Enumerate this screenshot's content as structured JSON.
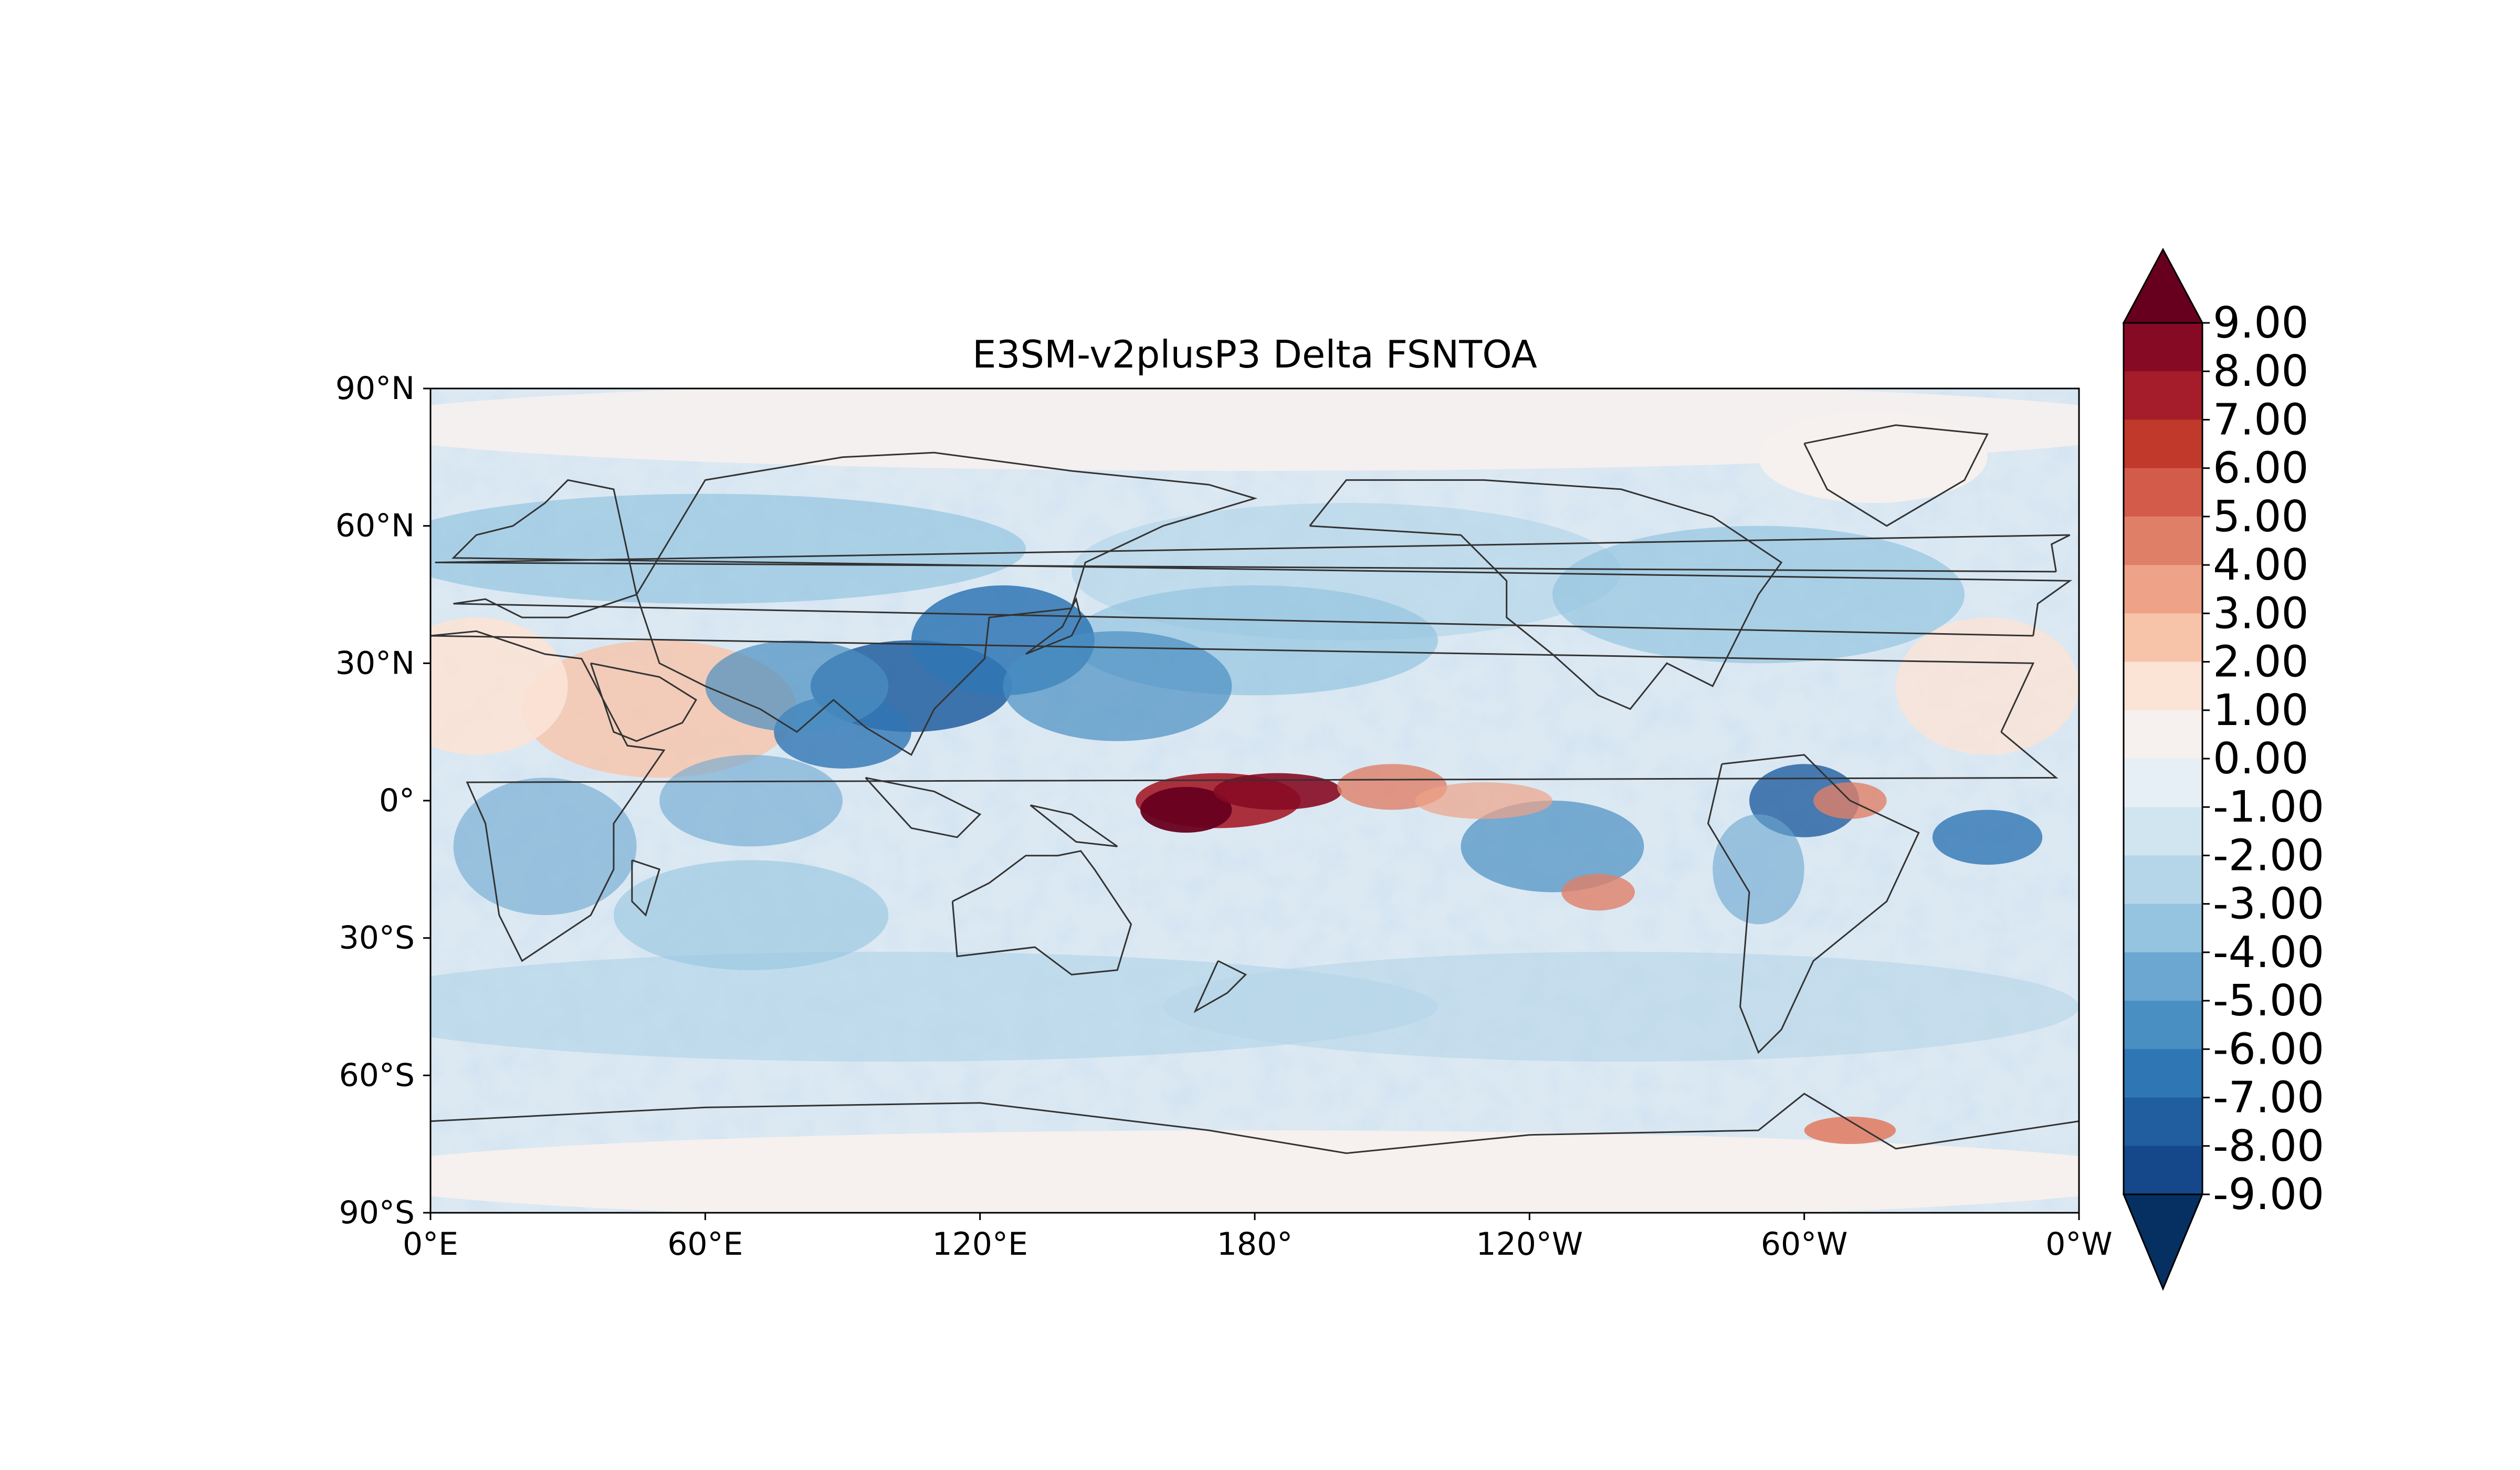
{
  "title": "E3SM-v2plusP3 Delta FSNTOA",
  "map": {
    "x_ticks": [
      "0°E",
      "60°E",
      "120°E",
      "180°",
      "120°W",
      "60°W",
      "0°W"
    ],
    "y_ticks": [
      "90°N",
      "60°N",
      "30°N",
      "0°",
      "30°S",
      "60°S",
      "90°S"
    ]
  },
  "colorbar": {
    "levels": [
      "9.00",
      "8.00",
      "7.00",
      "6.00",
      "5.00",
      "4.00",
      "3.00",
      "2.00",
      "1.00",
      "0.00",
      "-1.00",
      "-2.00",
      "-3.00",
      "-4.00",
      "-5.00",
      "-6.00",
      "-7.00",
      "-8.00",
      "-9.00"
    ],
    "colors": [
      "#67001f",
      "#870a24",
      "#a51c2a",
      "#c0392b",
      "#d35b4a",
      "#e07f68",
      "#eea287",
      "#f7c4aa",
      "#fbe3d6",
      "#f6f1ee",
      "#e7eff6",
      "#d1e5f0",
      "#b5d5e8",
      "#94c4df",
      "#6ba7d0",
      "#4a8fc2",
      "#2f76b4",
      "#215e9f",
      "#14488a",
      "#053061"
    ]
  },
  "colors": {
    "warm_max": "#67001f",
    "cool_max": "#053061",
    "neutral": "#f6f1ee",
    "coastline": "#333333"
  }
}
